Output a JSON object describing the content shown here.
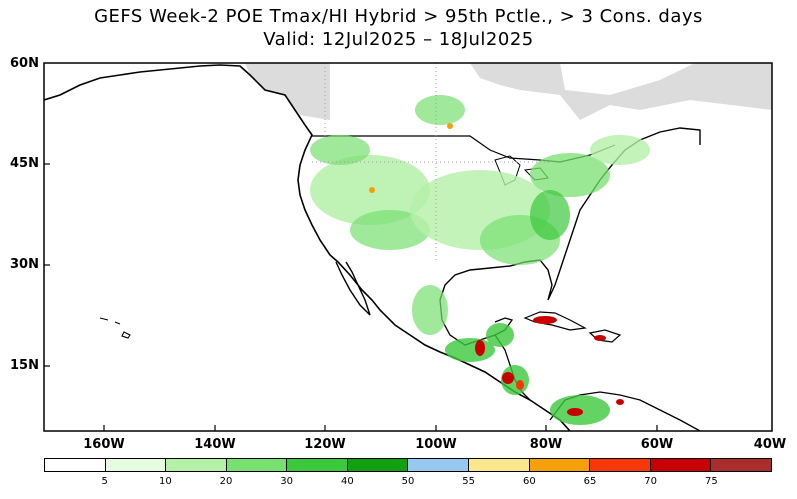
{
  "title_line1": "GEFS Week-2 POE Tmax/HI Hybrid > 95th Pctle., > 3 Cons. days",
  "title_line2": "Valid: 12Jul2025 – 18Jul2025",
  "lat_labels": [
    "60N",
    "45N",
    "30N",
    "15N"
  ],
  "lon_labels": [
    "160W",
    "140W",
    "120W",
    "100W",
    "80W",
    "60W",
    "40W"
  ],
  "legend": {
    "colors": [
      "#ffffff",
      "#e6fce0",
      "#b4f0a8",
      "#78e070",
      "#3cc83c",
      "#12a012",
      "#96c8f0",
      "#fae68c",
      "#f5a00a",
      "#f5370a",
      "#c80000",
      "#aa2d2d"
    ],
    "ticks": [
      "5",
      "10",
      "20",
      "30",
      "40",
      "50",
      "55",
      "60",
      "65",
      "70",
      "75"
    ]
  },
  "colors": {
    "no_data": "#dcdcdc",
    "land_outline": "#000000",
    "grid": "#a0a0a0"
  }
}
